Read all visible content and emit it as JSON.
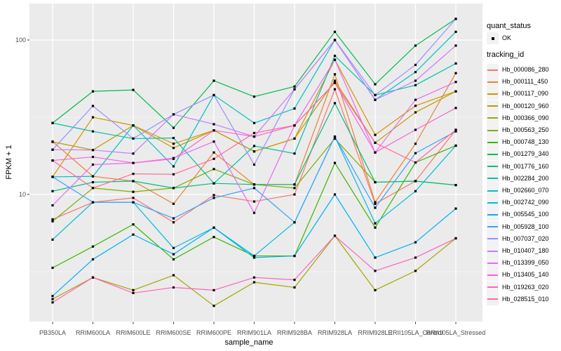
{
  "figure": {
    "background": "#FFFFFF",
    "panel_bg": "#EBEBEB",
    "grid_major_color": "#FFFFFF",
    "grid_minor_color": "#F7F7F7",
    "tick_mark_color": "#333333",
    "tick_label_color": "#4D4D4D",
    "point_color": "#000000",
    "legend_key_bg": "#F2F2F2"
  },
  "legend": {
    "quant_status": {
      "title": "quant_status",
      "items": [
        {
          "label": "OK",
          "marker": "black-square-point"
        }
      ]
    },
    "tracking_id": {
      "title": "tracking_id"
    }
  },
  "chart_data": {
    "type": "line",
    "title": "",
    "x_axis_label": "sample_name",
    "y_axis_label": "FPKM + 1",
    "y_scale": "log10",
    "y_tick_values": [
      100,
      10
    ],
    "y_tick_labels": [
      "100",
      "10"
    ],
    "y_minor_tick_values": [
      31.62,
      3.162
    ],
    "ylim": [
      1.5,
      172
    ],
    "grid": true,
    "legend_position": "right",
    "points": "black squares at every vertex",
    "categories": [
      "PB350LA",
      "RRIM600LA",
      "RRIM600LE",
      "RRIM600SE",
      "RRIM600PE",
      "RRIM901LA",
      "RRIM928BA",
      "RRIM928LA",
      "RRIM928LE",
      "RRII105LA_Control",
      "RRII105LA_Stressed"
    ],
    "series": [
      {
        "name": "Hb_000086_280",
        "color": "#F8766D",
        "quant_status": "OK",
        "values": [
          6.9,
          8.9,
          9.5,
          6.6,
          9.9,
          9.0,
          10.0,
          48,
          8.7,
          12.2,
          26.2
        ]
      },
      {
        "name": "Hb_000111_450",
        "color": "#EA8331",
        "quant_status": "OK",
        "values": [
          22.0,
          13.1,
          12.2,
          8.7,
          18.7,
          11.6,
          11.6,
          60,
          8.9,
          21.3,
          61
        ]
      },
      {
        "name": "Hb_000117_090",
        "color": "#D89000",
        "quant_status": "OK",
        "values": [
          13.0,
          31.6,
          28.0,
          21.3,
          26.0,
          19.0,
          23.0,
          74.5,
          24.3,
          37.5,
          46.5
        ]
      },
      {
        "name": "Hb_000120_960",
        "color": "#C09B00",
        "quant_status": "OK",
        "values": [
          21.9,
          19.4,
          28.0,
          20.0,
          26.0,
          19.0,
          23.0,
          54.5,
          21.6,
          34.0,
          46.5
        ]
      },
      {
        "name": "Hb_000366_090",
        "color": "#A3A500",
        "quant_status": "OK",
        "values": [
          2.1,
          2.9,
          2.4,
          3.0,
          1.9,
          2.7,
          2.5,
          5.4,
          2.4,
          3.2,
          5.2
        ]
      },
      {
        "name": "Hb_000563_250",
        "color": "#7CAE00",
        "quant_status": "OK",
        "values": [
          6.7,
          11.0,
          10.4,
          11.0,
          14.6,
          11.6,
          11.0,
          23.0,
          12.0,
          12.2,
          11.5
        ]
      },
      {
        "name": "Hb_000748_130",
        "color": "#39B600",
        "quant_status": "OK",
        "values": [
          3.35,
          4.6,
          6.4,
          3.8,
          5.3,
          4.0,
          4.0,
          16.0,
          6.1,
          16.1,
          20.7
        ]
      },
      {
        "name": "Hb_001279_340",
        "color": "#00BB4E",
        "quant_status": "OK",
        "values": [
          29.0,
          46.5,
          47.5,
          27.0,
          54.5,
          43.0,
          50.0,
          113,
          51.7,
          92.0,
          137
        ]
      },
      {
        "name": "Hb_001776_160",
        "color": "#00BF7D",
        "quant_status": "OK",
        "values": [
          10.5,
          12.0,
          12.2,
          11.0,
          11.8,
          11.6,
          11.6,
          39.0,
          12.0,
          12.2,
          11.5
        ]
      },
      {
        "name": "Hb_002284_200",
        "color": "#00C1A3",
        "quant_status": "OK",
        "values": [
          29.0,
          25.6,
          23.0,
          23.2,
          11.8,
          20.6,
          18.4,
          79.0,
          44.0,
          51.0,
          70.5
        ]
      },
      {
        "name": "Hb_002660_070",
        "color": "#00BFC4",
        "quant_status": "OK",
        "values": [
          13.0,
          13.1,
          28.0,
          15.2,
          44.0,
          29.0,
          36.0,
          100,
          41.0,
          62.0,
          113
        ]
      },
      {
        "name": "Hb_002742_090",
        "color": "#00BAE0",
        "quant_status": "OK",
        "values": [
          5.1,
          8.9,
          8.9,
          4.5,
          6.1,
          4.0,
          6.6,
          23.7,
          6.5,
          10.5,
          20.7
        ]
      },
      {
        "name": "Hb_005545_100",
        "color": "#00B0F6",
        "quant_status": "OK",
        "values": [
          2.2,
          3.8,
          5.5,
          4.1,
          6.1,
          3.9,
          4.0,
          10.0,
          3.9,
          4.9,
          8.1
        ]
      },
      {
        "name": "Hb_005928_100",
        "color": "#35A2FF",
        "quant_status": "OK",
        "values": [
          13.0,
          8.9,
          8.9,
          7.0,
          9.5,
          11.0,
          6.6,
          23.7,
          8.2,
          18.5,
          25.6
        ]
      },
      {
        "name": "Hb_007037_020",
        "color": "#9590FF",
        "quant_status": "OK",
        "values": [
          19.5,
          37.4,
          23.0,
          33.0,
          44.0,
          15.6,
          48.0,
          100,
          44.0,
          69.0,
          137
        ]
      },
      {
        "name": "Hb_010407_180",
        "color": "#C77CFF",
        "quant_status": "OK",
        "values": [
          19.5,
          19.4,
          18.4,
          33.0,
          28.5,
          23.7,
          48.0,
          100,
          41.0,
          54.5,
          92.0
        ]
      },
      {
        "name": "Hb_013399_050",
        "color": "#E76BF3",
        "quant_status": "OK",
        "values": [
          8.5,
          15.6,
          16.0,
          17.2,
          22.0,
          7.6,
          28.0,
          74.5,
          18.7,
          41.0,
          53.5
        ]
      },
      {
        "name": "Hb_013405_140",
        "color": "#FA62DB",
        "quant_status": "OK",
        "values": [
          16.6,
          17.5,
          16.0,
          17.0,
          26.0,
          23.7,
          28.0,
          52.8,
          18.7,
          26.2,
          36.3
        ]
      },
      {
        "name": "Hb_019263_020",
        "color": "#FF62BC",
        "quant_status": "OK",
        "values": [
          2.0,
          2.9,
          2.3,
          2.5,
          2.4,
          2.9,
          2.8,
          5.4,
          3.2,
          3.9,
          5.2
        ]
      },
      {
        "name": "Hb_028515_010",
        "color": "#FF6A98",
        "quant_status": "OK",
        "values": [
          16.6,
          11.0,
          13.6,
          13.5,
          17.0,
          25.0,
          28.0,
          52.8,
          21.6,
          16.1,
          26.2
        ]
      }
    ]
  }
}
